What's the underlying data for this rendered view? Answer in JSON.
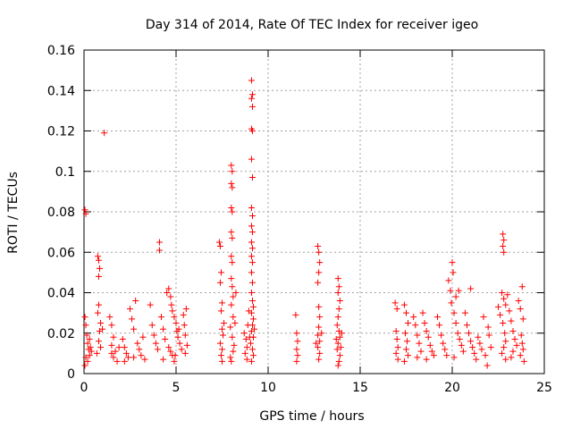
{
  "chart_data": {
    "type": "scatter",
    "title": "Day 314 of 2014, Rate Of TEC Index for receiver igeo",
    "xlabel": "GPS time / hours",
    "ylabel": "ROTI / TECUs",
    "xlim": [
      0,
      25
    ],
    "ylim": [
      0,
      0.16
    ],
    "x_ticks": [
      0,
      5,
      10,
      15,
      20,
      25
    ],
    "x_tick_labels": [
      "0",
      "5",
      "10",
      "15",
      "20",
      "25"
    ],
    "y_ticks": [
      0,
      0.02,
      0.04,
      0.06,
      0.08,
      0.1,
      0.12,
      0.14,
      0.16
    ],
    "y_tick_labels": [
      "0",
      "0.02",
      "0.04",
      "0.06",
      "0.08",
      "0.1",
      "0.12",
      "0.14",
      "0.16"
    ],
    "grid": true,
    "marker": "+",
    "colors": {
      "points": "#ff0000",
      "grid": "#a0a0a0",
      "axes": "#000000"
    },
    "series": [
      {
        "name": "ROTI",
        "points": [
          [
            0.05,
            0.081
          ],
          [
            0.1,
            0.079
          ],
          [
            0.05,
            0.028
          ],
          [
            0.1,
            0.024
          ],
          [
            0.15,
            0.019
          ],
          [
            0.2,
            0.015
          ],
          [
            0.25,
            0.012
          ],
          [
            0.1,
            0.008
          ],
          [
            0.05,
            0.004
          ],
          [
            0.2,
            0.006
          ],
          [
            0.3,
            0.017
          ],
          [
            0.35,
            0.013
          ],
          [
            0.3,
            0.009
          ],
          [
            0.4,
            0.011
          ],
          [
            0.75,
            0.058
          ],
          [
            0.8,
            0.056
          ],
          [
            0.85,
            0.052
          ],
          [
            0.8,
            0.048
          ],
          [
            0.8,
            0.034
          ],
          [
            0.75,
            0.03
          ],
          [
            0.9,
            0.025
          ],
          [
            0.85,
            0.021
          ],
          [
            0.8,
            0.016
          ],
          [
            0.9,
            0.013
          ],
          [
            0.7,
            0.01
          ],
          [
            1.0,
            0.022
          ],
          [
            1.1,
            0.119
          ],
          [
            1.4,
            0.028
          ],
          [
            1.5,
            0.024
          ],
          [
            1.6,
            0.018
          ],
          [
            1.5,
            0.014
          ],
          [
            1.7,
            0.011
          ],
          [
            1.6,
            0.008
          ],
          [
            1.8,
            0.006
          ],
          [
            1.9,
            0.013
          ],
          [
            1.5,
            0.01
          ],
          [
            2.1,
            0.017
          ],
          [
            2.2,
            0.013
          ],
          [
            2.3,
            0.01
          ],
          [
            2.4,
            0.008
          ],
          [
            2.2,
            0.006
          ],
          [
            2.5,
            0.032
          ],
          [
            2.6,
            0.027
          ],
          [
            2.7,
            0.022
          ],
          [
            2.8,
            0.036
          ],
          [
            2.9,
            0.015
          ],
          [
            3.0,
            0.012
          ],
          [
            3.1,
            0.009
          ],
          [
            3.2,
            0.018
          ],
          [
            2.7,
            0.008
          ],
          [
            3.3,
            0.007
          ],
          [
            3.6,
            0.034
          ],
          [
            3.7,
            0.024
          ],
          [
            3.8,
            0.019
          ],
          [
            3.9,
            0.015
          ],
          [
            4.0,
            0.012
          ],
          [
            4.1,
            0.065
          ],
          [
            4.1,
            0.061
          ],
          [
            4.2,
            0.028
          ],
          [
            4.3,
            0.022
          ],
          [
            4.4,
            0.017
          ],
          [
            4.5,
            0.04
          ],
          [
            4.6,
            0.013
          ],
          [
            4.7,
            0.011
          ],
          [
            4.8,
            0.009
          ],
          [
            4.9,
            0.006
          ],
          [
            4.3,
            0.007
          ],
          [
            4.6,
            0.042
          ],
          [
            4.7,
            0.038
          ],
          [
            4.75,
            0.034
          ],
          [
            4.8,
            0.031
          ],
          [
            4.9,
            0.028
          ],
          [
            5.0,
            0.025
          ],
          [
            5.05,
            0.021
          ],
          [
            5.1,
            0.018
          ],
          [
            5.2,
            0.015
          ],
          [
            5.3,
            0.012
          ],
          [
            5.4,
            0.029
          ],
          [
            5.45,
            0.024
          ],
          [
            5.5,
            0.019
          ],
          [
            5.55,
            0.032
          ],
          [
            5.6,
            0.014
          ],
          [
            5.5,
            0.01
          ],
          [
            4.95,
            0.009
          ],
          [
            5.15,
            0.022
          ],
          [
            7.35,
            0.065
          ],
          [
            7.4,
            0.063
          ],
          [
            7.45,
            0.05
          ],
          [
            7.4,
            0.045
          ],
          [
            7.5,
            0.035
          ],
          [
            7.45,
            0.031
          ],
          [
            7.5,
            0.022
          ],
          [
            7.55,
            0.019
          ],
          [
            7.4,
            0.015
          ],
          [
            7.5,
            0.012
          ],
          [
            7.45,
            0.009
          ],
          [
            7.5,
            0.006
          ],
          [
            7.6,
            0.025
          ],
          [
            8.0,
            0.103
          ],
          [
            8.05,
            0.1
          ],
          [
            8.0,
            0.094
          ],
          [
            8.05,
            0.092
          ],
          [
            8.0,
            0.082
          ],
          [
            8.05,
            0.08
          ],
          [
            8.0,
            0.07
          ],
          [
            8.05,
            0.067
          ],
          [
            8.0,
            0.058
          ],
          [
            8.05,
            0.055
          ],
          [
            8.0,
            0.047
          ],
          [
            8.05,
            0.043
          ],
          [
            8.1,
            0.038
          ],
          [
            8.0,
            0.034
          ],
          [
            8.1,
            0.028
          ],
          [
            7.95,
            0.023
          ],
          [
            8.05,
            0.018
          ],
          [
            8.15,
            0.014
          ],
          [
            8.1,
            0.011
          ],
          [
            7.95,
            0.008
          ],
          [
            8.0,
            0.006
          ],
          [
            8.25,
            0.04
          ],
          [
            8.2,
            0.025
          ],
          [
            8.7,
            0.02
          ],
          [
            8.8,
            0.017
          ],
          [
            8.85,
            0.013
          ],
          [
            8.75,
            0.01
          ],
          [
            8.9,
            0.024
          ],
          [
            8.95,
            0.031
          ],
          [
            8.85,
            0.007
          ],
          [
            9.1,
            0.145
          ],
          [
            9.15,
            0.138
          ],
          [
            9.1,
            0.136
          ],
          [
            9.15,
            0.132
          ],
          [
            9.1,
            0.121
          ],
          [
            9.15,
            0.12
          ],
          [
            9.1,
            0.106
          ],
          [
            9.15,
            0.097
          ],
          [
            9.1,
            0.082
          ],
          [
            9.15,
            0.078
          ],
          [
            9.1,
            0.073
          ],
          [
            9.15,
            0.07
          ],
          [
            9.1,
            0.065
          ],
          [
            9.15,
            0.062
          ],
          [
            9.1,
            0.058
          ],
          [
            9.15,
            0.055
          ],
          [
            9.1,
            0.05
          ],
          [
            9.15,
            0.045
          ],
          [
            9.1,
            0.04
          ],
          [
            9.15,
            0.036
          ],
          [
            9.2,
            0.033
          ],
          [
            9.1,
            0.03
          ],
          [
            9.2,
            0.027
          ],
          [
            9.15,
            0.024
          ],
          [
            9.1,
            0.021
          ],
          [
            9.2,
            0.018
          ],
          [
            9.05,
            0.015
          ],
          [
            9.15,
            0.012
          ],
          [
            9.2,
            0.009
          ],
          [
            9.1,
            0.006
          ],
          [
            9.0,
            0.018
          ],
          [
            9.25,
            0.022
          ],
          [
            11.5,
            0.029
          ],
          [
            11.55,
            0.02
          ],
          [
            11.6,
            0.016
          ],
          [
            11.55,
            0.012
          ],
          [
            11.6,
            0.009
          ],
          [
            11.55,
            0.006
          ],
          [
            12.7,
            0.063
          ],
          [
            12.75,
            0.06
          ],
          [
            12.8,
            0.055
          ],
          [
            12.75,
            0.05
          ],
          [
            12.7,
            0.045
          ],
          [
            12.75,
            0.033
          ],
          [
            12.8,
            0.028
          ],
          [
            12.75,
            0.023
          ],
          [
            12.7,
            0.019
          ],
          [
            12.8,
            0.016
          ],
          [
            12.7,
            0.013
          ],
          [
            12.8,
            0.01
          ],
          [
            12.75,
            0.007
          ],
          [
            12.9,
            0.02
          ],
          [
            12.6,
            0.015
          ],
          [
            13.8,
            0.047
          ],
          [
            13.85,
            0.043
          ],
          [
            13.8,
            0.04
          ],
          [
            13.9,
            0.036
          ],
          [
            13.85,
            0.032
          ],
          [
            13.8,
            0.028
          ],
          [
            13.75,
            0.024
          ],
          [
            13.85,
            0.021
          ],
          [
            13.9,
            0.018
          ],
          [
            13.8,
            0.015
          ],
          [
            13.75,
            0.012
          ],
          [
            13.9,
            0.009
          ],
          [
            13.85,
            0.006
          ],
          [
            14.0,
            0.02
          ],
          [
            13.7,
            0.017
          ],
          [
            13.95,
            0.013
          ],
          [
            13.8,
            0.004
          ],
          [
            16.9,
            0.035
          ],
          [
            17.0,
            0.032
          ],
          [
            16.95,
            0.021
          ],
          [
            17.0,
            0.017
          ],
          [
            17.05,
            0.013
          ],
          [
            16.95,
            0.01
          ],
          [
            17.05,
            0.007
          ],
          [
            17.4,
            0.034
          ],
          [
            17.5,
            0.03
          ],
          [
            17.6,
            0.025
          ],
          [
            17.45,
            0.02
          ],
          [
            17.55,
            0.016
          ],
          [
            17.5,
            0.012
          ],
          [
            17.6,
            0.009
          ],
          [
            17.4,
            0.006
          ],
          [
            17.9,
            0.028
          ],
          [
            18.0,
            0.024
          ],
          [
            18.1,
            0.019
          ],
          [
            18.2,
            0.015
          ],
          [
            18.3,
            0.011
          ],
          [
            18.1,
            0.008
          ],
          [
            18.4,
            0.03
          ],
          [
            18.5,
            0.025
          ],
          [
            18.6,
            0.021
          ],
          [
            18.7,
            0.018
          ],
          [
            18.8,
            0.014
          ],
          [
            18.9,
            0.011
          ],
          [
            18.6,
            0.007
          ],
          [
            19.0,
            0.009
          ],
          [
            19.2,
            0.028
          ],
          [
            19.3,
            0.024
          ],
          [
            19.4,
            0.019
          ],
          [
            19.5,
            0.015
          ],
          [
            19.6,
            0.012
          ],
          [
            19.7,
            0.009
          ],
          [
            19.8,
            0.046
          ],
          [
            19.9,
            0.041
          ],
          [
            19.95,
            0.035
          ],
          [
            20.0,
            0.055
          ],
          [
            20.05,
            0.05
          ],
          [
            20.1,
            0.03
          ],
          [
            20.2,
            0.025
          ],
          [
            20.3,
            0.02
          ],
          [
            20.4,
            0.017
          ],
          [
            20.5,
            0.014
          ],
          [
            20.35,
            0.041
          ],
          [
            20.2,
            0.038
          ],
          [
            20.6,
            0.011
          ],
          [
            20.1,
            0.008
          ],
          [
            20.7,
            0.03
          ],
          [
            20.8,
            0.024
          ],
          [
            20.9,
            0.02
          ],
          [
            21.0,
            0.042
          ],
          [
            21.0,
            0.016
          ],
          [
            21.1,
            0.013
          ],
          [
            21.2,
            0.01
          ],
          [
            21.3,
            0.007
          ],
          [
            21.4,
            0.018
          ],
          [
            21.5,
            0.015
          ],
          [
            21.6,
            0.012
          ],
          [
            21.7,
            0.028
          ],
          [
            21.8,
            0.009
          ],
          [
            21.9,
            0.004
          ],
          [
            22.0,
            0.019
          ],
          [
            21.95,
            0.023
          ],
          [
            22.1,
            0.013
          ],
          [
            22.5,
            0.033
          ],
          [
            22.6,
            0.029
          ],
          [
            22.75,
            0.069
          ],
          [
            22.8,
            0.066
          ],
          [
            22.75,
            0.063
          ],
          [
            22.8,
            0.06
          ],
          [
            22.7,
            0.04
          ],
          [
            22.8,
            0.037
          ],
          [
            22.9,
            0.034
          ],
          [
            22.75,
            0.025
          ],
          [
            22.85,
            0.02
          ],
          [
            22.9,
            0.016
          ],
          [
            22.8,
            0.013
          ],
          [
            22.7,
            0.01
          ],
          [
            22.9,
            0.007
          ],
          [
            23.0,
            0.039
          ],
          [
            23.1,
            0.031
          ],
          [
            23.2,
            0.026
          ],
          [
            23.3,
            0.021
          ],
          [
            23.4,
            0.017
          ],
          [
            23.5,
            0.014
          ],
          [
            23.3,
            0.011
          ],
          [
            23.2,
            0.008
          ],
          [
            23.6,
            0.036
          ],
          [
            23.7,
            0.032
          ],
          [
            23.8,
            0.043
          ],
          [
            23.85,
            0.027
          ],
          [
            23.75,
            0.019
          ],
          [
            23.8,
            0.015
          ],
          [
            23.85,
            0.012
          ],
          [
            23.7,
            0.009
          ],
          [
            23.9,
            0.006
          ]
        ]
      }
    ]
  }
}
